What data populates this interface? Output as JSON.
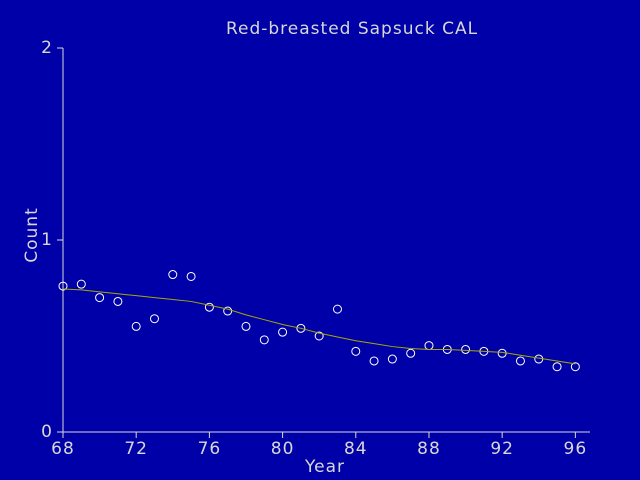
{
  "chart_data": {
    "type": "scatter",
    "title": "Red-breasted Sapsuck CAL",
    "xlabel": "Year",
    "ylabel": "Count",
    "x": [
      68,
      69,
      70,
      71,
      72,
      73,
      74,
      75,
      76,
      77,
      78,
      79,
      80,
      81,
      82,
      83,
      84,
      85,
      86,
      87,
      88,
      89,
      90,
      91,
      92,
      93,
      94,
      95,
      96
    ],
    "series": [
      {
        "mode": "markers",
        "color": "#ffffff",
        "values": [
          0.76,
          0.77,
          0.7,
          0.68,
          0.55,
          0.59,
          0.82,
          0.81,
          0.65,
          0.63,
          0.55,
          0.48,
          0.52,
          0.54,
          0.5,
          0.64,
          0.42,
          0.37,
          0.38,
          0.41,
          0.45,
          0.43,
          0.43,
          0.42,
          0.41,
          0.37,
          0.38,
          0.34,
          0.34
        ]
      },
      {
        "mode": "line",
        "color": "#a8a800",
        "values": [
          0.745,
          0.74,
          0.73,
          0.72,
          0.71,
          0.7,
          0.69,
          0.68,
          0.66,
          0.64,
          0.61,
          0.585,
          0.56,
          0.54,
          0.515,
          0.495,
          0.475,
          0.46,
          0.445,
          0.435,
          0.43,
          0.43,
          0.425,
          0.42,
          0.415,
          0.4,
          0.385,
          0.37,
          0.355
        ]
      }
    ],
    "xlim": [
      68,
      96.8
    ],
    "xticks": [
      68,
      72,
      76,
      80,
      84,
      88,
      92,
      96
    ],
    "ylim": [
      0,
      2
    ],
    "yticks": [
      0,
      1,
      2
    ],
    "grid": false
  }
}
